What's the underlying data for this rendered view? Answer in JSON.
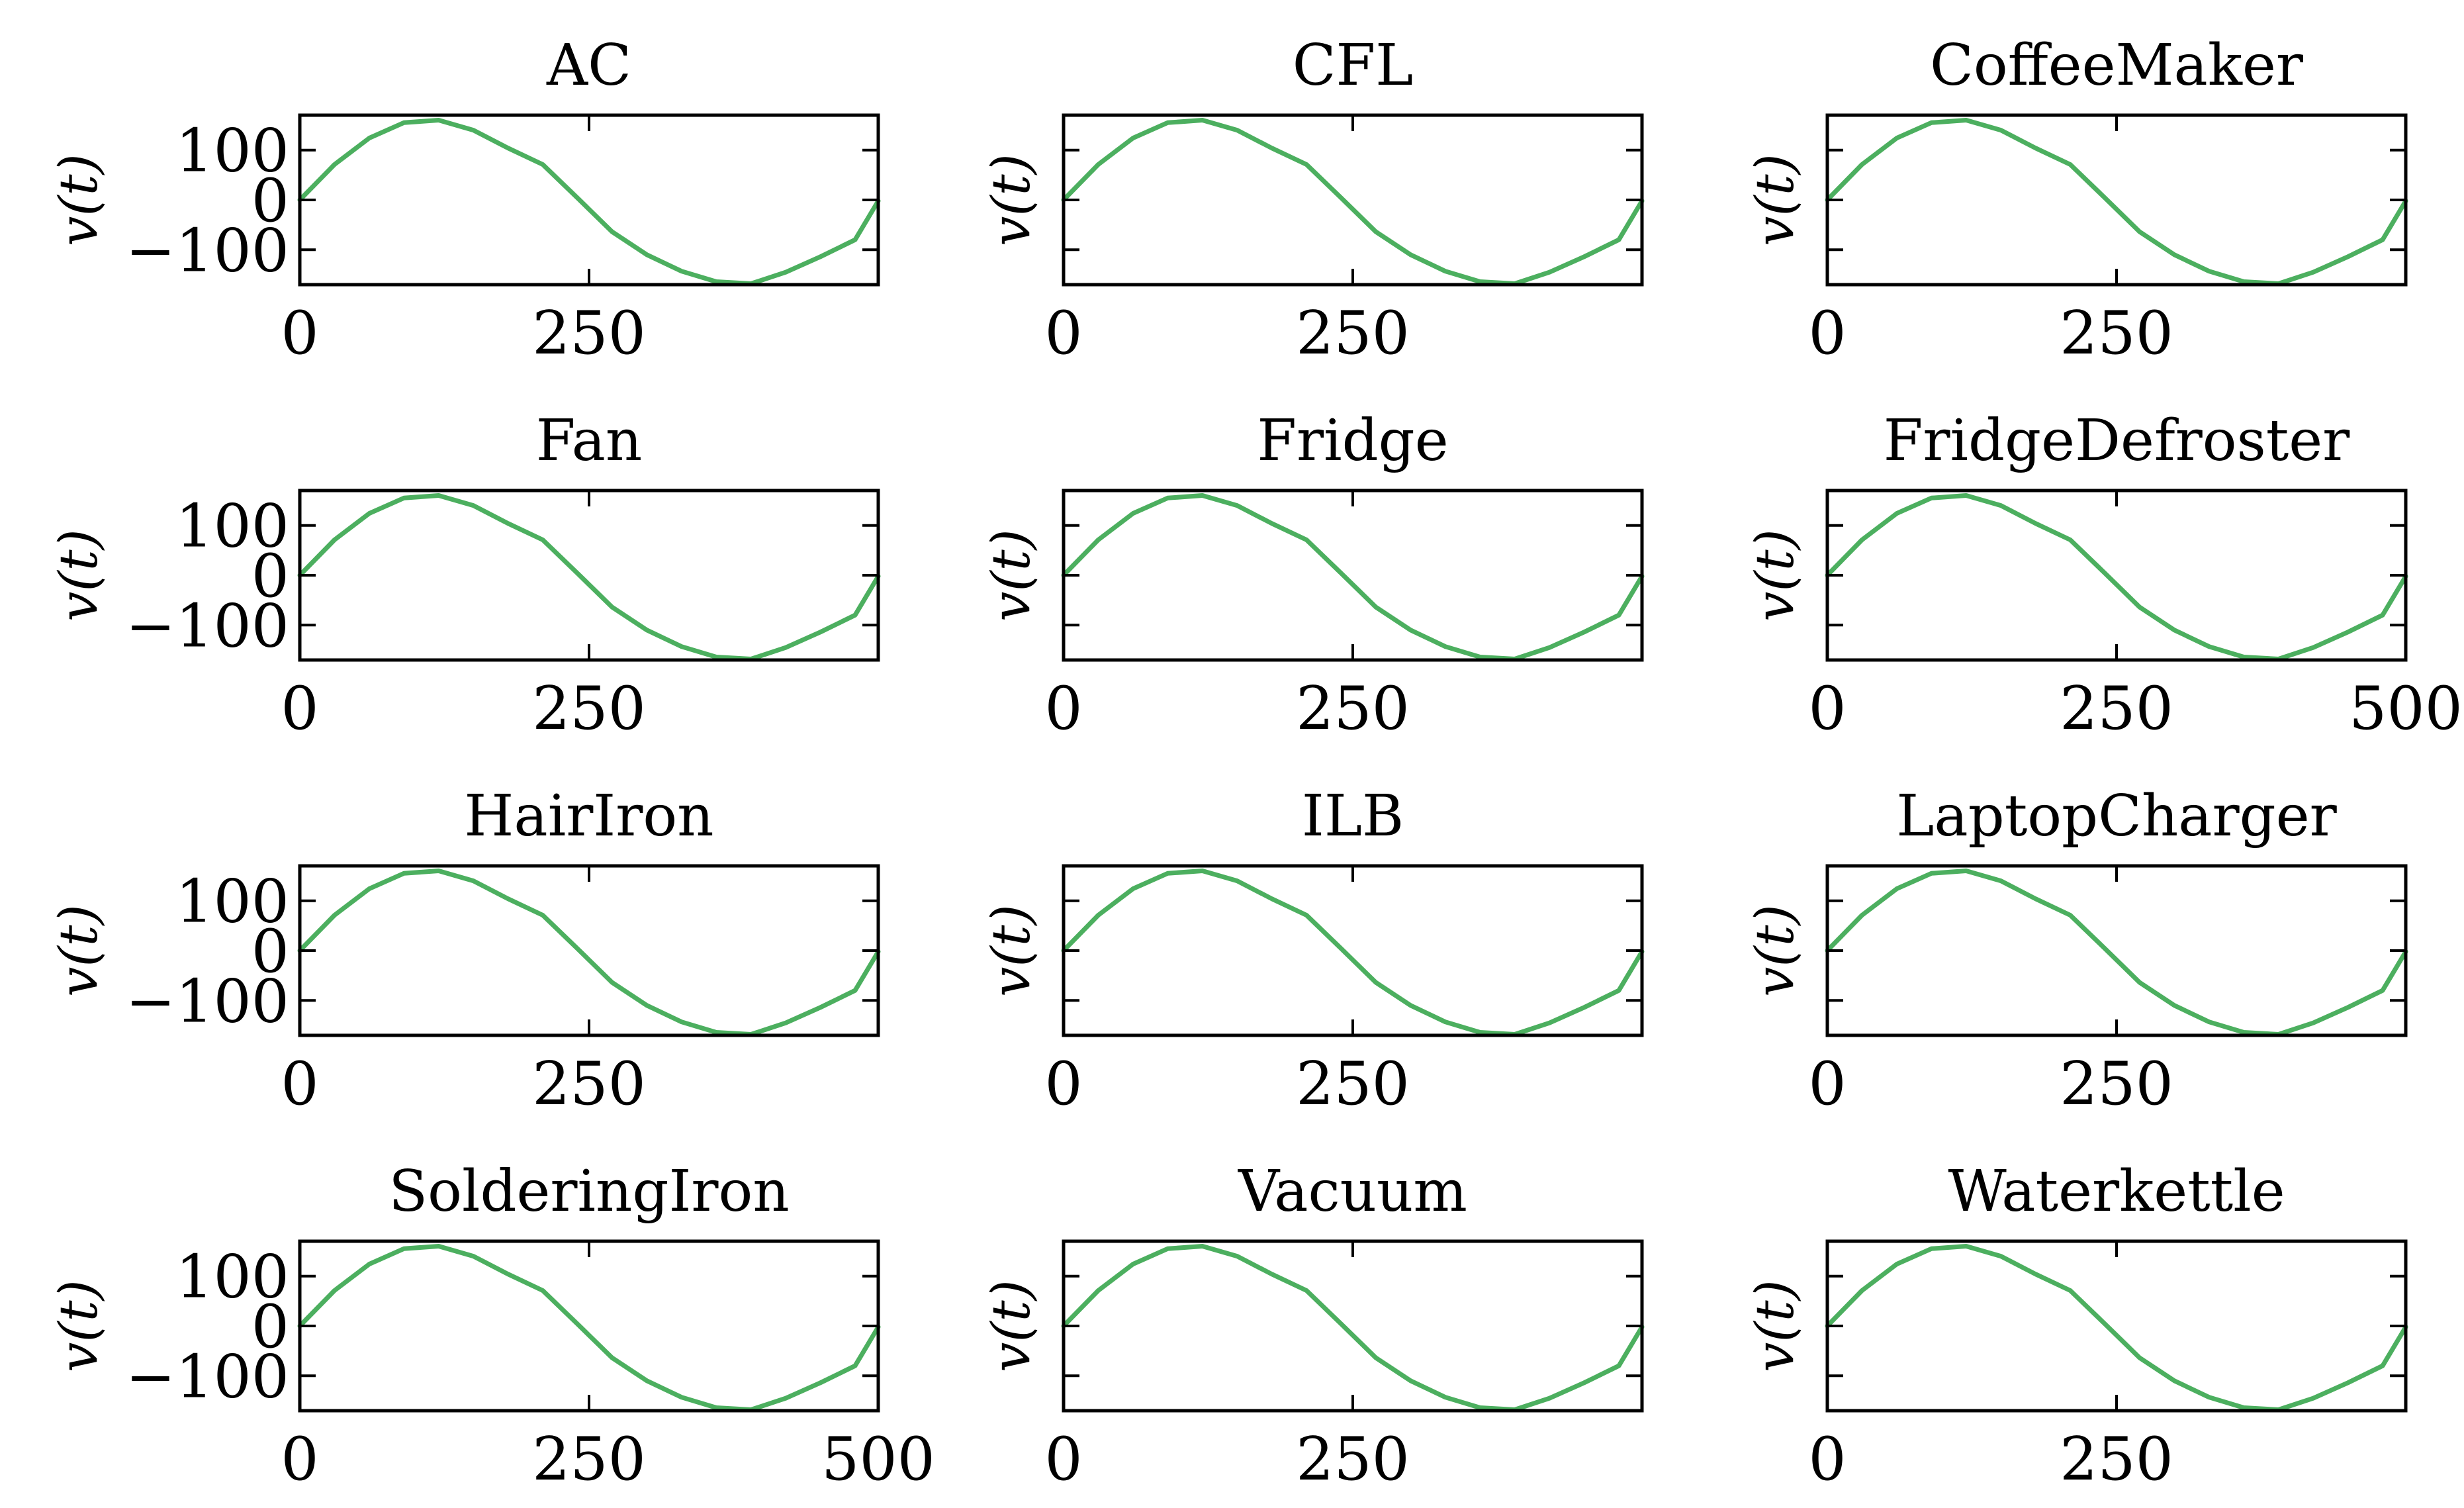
{
  "colors": {
    "series": "#4caf5f"
  },
  "ylabel_text": "v(t)",
  "chart_data": [
    {
      "type": "line",
      "title": "AC",
      "xlabel": "",
      "ylabel": "v(t)",
      "xlim": [
        0,
        500
      ],
      "ylim": [
        -170,
        170
      ],
      "xticks": [
        "0",
        "250"
      ],
      "yticks": [
        "100",
        "0",
        "−100"
      ],
      "series": [
        {
          "name": "AC",
          "x": [
            0,
            30,
            60,
            90,
            120,
            150,
            180,
            210,
            240,
            270,
            300,
            330,
            360,
            390,
            420,
            450,
            480,
            500
          ],
          "y": [
            0,
            71,
            124,
            155,
            160,
            140,
            104,
            71,
            4,
            -64,
            -110,
            -143,
            -164,
            -168,
            -145,
            -114,
            -80,
            -2
          ]
        }
      ]
    },
    {
      "type": "line",
      "title": "CFL",
      "xlabel": "",
      "ylabel": "v(t)",
      "xlim": [
        0,
        500
      ],
      "ylim": [
        -170,
        170
      ],
      "xticks": [
        "0",
        "250"
      ],
      "yticks": [],
      "series": [
        {
          "name": "CFL",
          "x": [
            0,
            30,
            60,
            90,
            120,
            150,
            180,
            210,
            240,
            270,
            300,
            330,
            360,
            390,
            420,
            450,
            480,
            500
          ],
          "y": [
            0,
            71,
            124,
            155,
            160,
            140,
            104,
            71,
            4,
            -64,
            -110,
            -143,
            -164,
            -168,
            -145,
            -114,
            -80,
            -2
          ]
        }
      ]
    },
    {
      "type": "line",
      "title": "CoffeeMaker",
      "xlabel": "",
      "ylabel": "v(t)",
      "xlim": [
        0,
        500
      ],
      "ylim": [
        -170,
        170
      ],
      "xticks": [
        "0",
        "250"
      ],
      "yticks": [],
      "series": [
        {
          "name": "CoffeeMaker",
          "x": [
            0,
            30,
            60,
            90,
            120,
            150,
            180,
            210,
            240,
            270,
            300,
            330,
            360,
            390,
            420,
            450,
            480,
            500
          ],
          "y": [
            0,
            71,
            124,
            155,
            160,
            140,
            104,
            71,
            4,
            -64,
            -110,
            -143,
            -164,
            -168,
            -145,
            -114,
            -80,
            -2
          ]
        }
      ]
    },
    {
      "type": "line",
      "title": "Fan",
      "xlabel": "",
      "ylabel": "v(t)",
      "xlim": [
        0,
        500
      ],
      "ylim": [
        -170,
        170
      ],
      "xticks": [
        "0",
        "250"
      ],
      "yticks": [
        "100",
        "0",
        "−100"
      ],
      "series": [
        {
          "name": "Fan",
          "x": [
            0,
            30,
            60,
            90,
            120,
            150,
            180,
            210,
            240,
            270,
            300,
            330,
            360,
            390,
            420,
            450,
            480,
            500
          ],
          "y": [
            0,
            71,
            124,
            155,
            160,
            140,
            104,
            71,
            4,
            -64,
            -110,
            -143,
            -164,
            -168,
            -145,
            -114,
            -80,
            -2
          ]
        }
      ]
    },
    {
      "type": "line",
      "title": "Fridge",
      "xlabel": "",
      "ylabel": "v(t)",
      "xlim": [
        0,
        500
      ],
      "ylim": [
        -170,
        170
      ],
      "xticks": [
        "0",
        "250"
      ],
      "yticks": [],
      "series": [
        {
          "name": "Fridge",
          "x": [
            0,
            30,
            60,
            90,
            120,
            150,
            180,
            210,
            240,
            270,
            300,
            330,
            360,
            390,
            420,
            450,
            480,
            500
          ],
          "y": [
            0,
            71,
            124,
            155,
            160,
            140,
            104,
            71,
            4,
            -64,
            -110,
            -143,
            -164,
            -168,
            -145,
            -114,
            -80,
            -2
          ]
        }
      ]
    },
    {
      "type": "line",
      "title": "FridgeDefroster",
      "xlabel": "",
      "ylabel": "v(t)",
      "xlim": [
        0,
        500
      ],
      "ylim": [
        -170,
        170
      ],
      "xticks": [
        "0",
        "250",
        "500"
      ],
      "yticks": [],
      "series": [
        {
          "name": "FridgeDefroster",
          "x": [
            0,
            30,
            60,
            90,
            120,
            150,
            180,
            210,
            240,
            270,
            300,
            330,
            360,
            390,
            420,
            450,
            480,
            500
          ],
          "y": [
            0,
            71,
            124,
            155,
            160,
            140,
            104,
            71,
            4,
            -64,
            -110,
            -143,
            -164,
            -168,
            -145,
            -114,
            -80,
            -2
          ]
        }
      ]
    },
    {
      "type": "line",
      "title": "HairIron",
      "xlabel": "",
      "ylabel": "v(t)",
      "xlim": [
        0,
        500
      ],
      "ylim": [
        -170,
        170
      ],
      "xticks": [
        "0",
        "250"
      ],
      "yticks": [
        "100",
        "0",
        "−100"
      ],
      "series": [
        {
          "name": "HairIron",
          "x": [
            0,
            30,
            60,
            90,
            120,
            150,
            180,
            210,
            240,
            270,
            300,
            330,
            360,
            390,
            420,
            450,
            480,
            500
          ],
          "y": [
            0,
            71,
            124,
            155,
            160,
            140,
            104,
            71,
            4,
            -64,
            -110,
            -143,
            -164,
            -168,
            -145,
            -114,
            -80,
            -2
          ]
        }
      ]
    },
    {
      "type": "line",
      "title": "ILB",
      "xlabel": "",
      "ylabel": "v(t)",
      "xlim": [
        0,
        500
      ],
      "ylim": [
        -170,
        170
      ],
      "xticks": [
        "0",
        "250"
      ],
      "yticks": [],
      "series": [
        {
          "name": "ILB",
          "x": [
            0,
            30,
            60,
            90,
            120,
            150,
            180,
            210,
            240,
            270,
            300,
            330,
            360,
            390,
            420,
            450,
            480,
            500
          ],
          "y": [
            0,
            71,
            124,
            155,
            160,
            140,
            104,
            71,
            4,
            -64,
            -110,
            -143,
            -164,
            -168,
            -145,
            -114,
            -80,
            -2
          ]
        }
      ]
    },
    {
      "type": "line",
      "title": "LaptopCharger",
      "xlabel": "",
      "ylabel": "v(t)",
      "xlim": [
        0,
        500
      ],
      "ylim": [
        -170,
        170
      ],
      "xticks": [
        "0",
        "250"
      ],
      "yticks": [],
      "series": [
        {
          "name": "LaptopCharger",
          "x": [
            0,
            30,
            60,
            90,
            120,
            150,
            180,
            210,
            240,
            270,
            300,
            330,
            360,
            390,
            420,
            450,
            480,
            500
          ],
          "y": [
            0,
            71,
            124,
            155,
            160,
            140,
            104,
            71,
            4,
            -64,
            -110,
            -143,
            -164,
            -168,
            -145,
            -114,
            -80,
            -2
          ]
        }
      ]
    },
    {
      "type": "line",
      "title": "SolderingIron",
      "xlabel": "",
      "ylabel": "v(t)",
      "xlim": [
        0,
        500
      ],
      "ylim": [
        -170,
        170
      ],
      "xticks": [
        "0",
        "250",
        "500"
      ],
      "yticks": [
        "100",
        "0",
        "−100"
      ],
      "series": [
        {
          "name": "SolderingIron",
          "x": [
            0,
            30,
            60,
            90,
            120,
            150,
            180,
            210,
            240,
            270,
            300,
            330,
            360,
            390,
            420,
            450,
            480,
            500
          ],
          "y": [
            0,
            71,
            124,
            155,
            160,
            140,
            104,
            71,
            4,
            -64,
            -110,
            -143,
            -164,
            -168,
            -145,
            -114,
            -80,
            -2
          ]
        }
      ]
    },
    {
      "type": "line",
      "title": "Vacuum",
      "xlabel": "",
      "ylabel": "v(t)",
      "xlim": [
        0,
        500
      ],
      "ylim": [
        -170,
        170
      ],
      "xticks": [
        "0",
        "250"
      ],
      "yticks": [],
      "series": [
        {
          "name": "Vacuum",
          "x": [
            0,
            30,
            60,
            90,
            120,
            150,
            180,
            210,
            240,
            270,
            300,
            330,
            360,
            390,
            420,
            450,
            480,
            500
          ],
          "y": [
            0,
            71,
            124,
            155,
            160,
            140,
            104,
            71,
            4,
            -64,
            -110,
            -143,
            -164,
            -168,
            -145,
            -114,
            -80,
            -2
          ]
        }
      ]
    },
    {
      "type": "line",
      "title": "Waterkettle",
      "xlabel": "",
      "ylabel": "v(t)",
      "xlim": [
        0,
        500
      ],
      "ylim": [
        -170,
        170
      ],
      "xticks": [
        "0",
        "250"
      ],
      "yticks": [],
      "series": [
        {
          "name": "Waterkettle",
          "x": [
            0,
            30,
            60,
            90,
            120,
            150,
            180,
            210,
            240,
            270,
            300,
            330,
            360,
            390,
            420,
            450,
            480,
            500
          ],
          "y": [
            0,
            71,
            124,
            155,
            160,
            140,
            104,
            71,
            4,
            -64,
            -110,
            -143,
            -164,
            -168,
            -145,
            -114,
            -80,
            -2
          ]
        }
      ]
    }
  ]
}
